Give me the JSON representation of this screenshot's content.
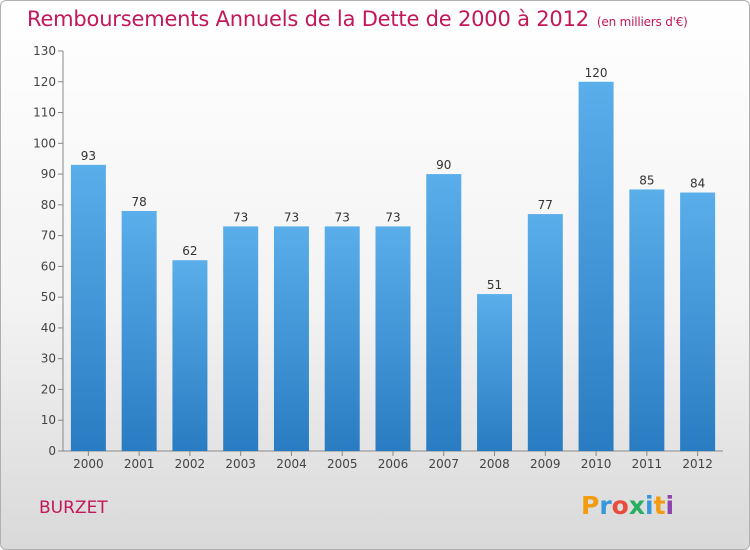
{
  "title": "Remboursements Annuels de la Dette de 2000 à 2012",
  "unit": "(en milliers d'€)",
  "commune": "BURZET",
  "logo": {
    "letters": [
      "P",
      "r",
      "o",
      "x",
      "i",
      "t",
      "i"
    ],
    "colors": [
      "#f39c12",
      "#3498db",
      "#e74c3c",
      "#27ae60",
      "#3498db",
      "#f39c12",
      "#8e44ad"
    ]
  },
  "chart_data": {
    "type": "bar",
    "categories": [
      "2000",
      "2001",
      "2002",
      "2003",
      "2004",
      "2005",
      "2006",
      "2007",
      "2008",
      "2009",
      "2010",
      "2011",
      "2012"
    ],
    "values": [
      93,
      78,
      62,
      73,
      73,
      73,
      73,
      90,
      51,
      77,
      120,
      85,
      84
    ],
    "title": "Remboursements Annuels de la Dette de 2000 à 2012",
    "ylim": [
      0,
      130
    ],
    "yticks": [
      0,
      10,
      20,
      30,
      40,
      50,
      60,
      70,
      80,
      90,
      100,
      110,
      120,
      130
    ],
    "grid": false,
    "bar_color": "#4a9fe0"
  }
}
